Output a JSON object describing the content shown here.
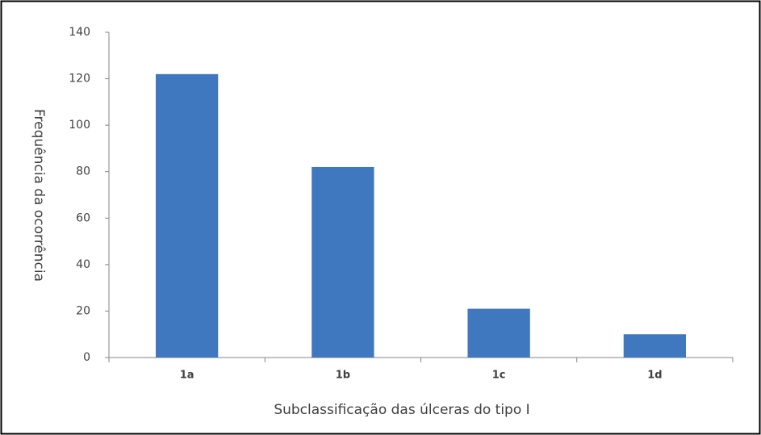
{
  "chart_data": {
    "type": "bar",
    "categories": [
      "1a",
      "1b",
      "1c",
      "1d"
    ],
    "values": [
      122,
      82,
      21,
      10
    ],
    "color": "#3f78be",
    "xlabel": "Subclassificação das úlceras do tipo I",
    "ylabel": "Frequência da ocorrência",
    "ylim": [
      0,
      140
    ],
    "yticks": [
      0,
      20,
      40,
      60,
      80,
      100,
      120,
      140
    ],
    "grid": false
  }
}
